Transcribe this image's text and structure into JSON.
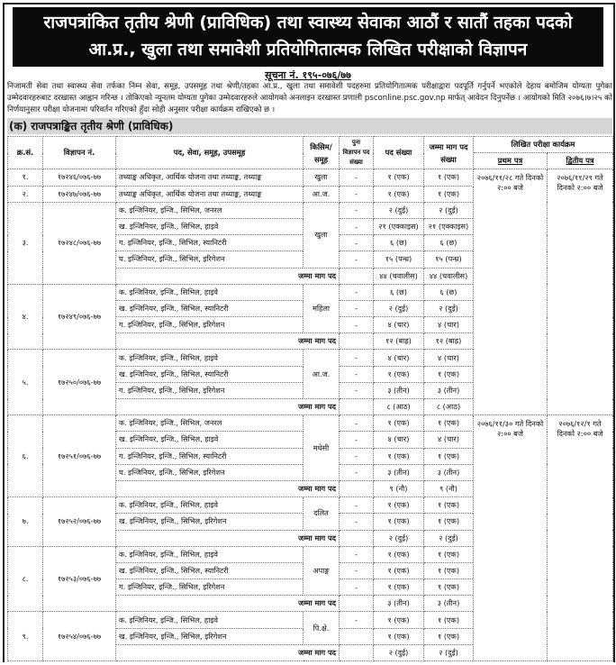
{
  "title": {
    "line1": "राजपत्रांकित तृतीय श्रेणी (प्राविधिक) तथा स्वास्थ्य सेवाका आठौं र सातौं तहका पदको",
    "line2": "आ.प्र., खुला तथा समावेशी प्रतियोगितात्मक लिखित परीक्षाको विज्ञापन"
  },
  "notice_no": "सूचना नं. १९५-०७६/७७",
  "paragraph": "निजामती सेवा तथा स्वास्थ्य सेवा तर्फका निम्न सेवा, समूह, उपसमूह तथा श्रेणी/तहका आ.प्र., खुला तथा समावेशी पदहरुमा प्रतियोगितात्मक परीक्षाद्वारा पदपूर्ति गर्नुपर्ने भएकोले देहाय बमोजिम योग्यता पुगेका उम्मेदवारहरुबाट दरखास्त आह्वान गरिन्छ । तोकिएको न्यूनतम योग्यता पुगेका उम्मेदवारहरुले आयोगको अनलाइन दरखास्त प्रणाली psconline.psc.gov.np मार्फत् आवेदन दिनुपर्नेछ । आयोगको मिति २०७६।७।२५ को निर्णयानुसार परीक्षा योजनामा परिवर्तन गरिएको हुँदा सोही अनुसार परीक्षा कार्यक्रम राखिएको छ ।",
  "section_heading": "(क) राजपत्राङ्कित तृतीय श्रेणी (प्राविधिक)",
  "table": {
    "headers": {
      "sn": "क्र.सं.",
      "ad_no": "विज्ञापन नं.",
      "post": "पद, सेवा, समूह, उपसमूह",
      "category": "किसिम/ समूह",
      "readvertised": "पुनः विज्ञापन पद संख्या",
      "posts_count": "पद संख्या",
      "total_demand": "जम्मा माग पद संख्या",
      "exam_schedule": "लिखित परीक्षा कार्यक्रम",
      "paper1": "प्रथम पत्र",
      "paper2": "द्वितीय पत्र"
    },
    "total_label": "जम्मा माग पद",
    "exam_blocks": [
      {
        "paper1": "२०७६/११/२८ गते दिनको २:०० बजे",
        "paper2": "२०७६/११/२९ गते दिनको २:०० बजे"
      },
      {
        "paper1": "२०७६/११/३० गते दिनको २:०० बजे",
        "paper2": "२०७६/१२/१ गते दिनको २:०० बजे"
      }
    ],
    "groups": [
      {
        "sn": "१.",
        "ad_no": "१७२४६/०७६-७७",
        "category": "खुला",
        "posts": [
          {
            "name": "तथ्याङ्क अधिकृत, आर्थिक योजना तथा तथ्याङ्क, तथ्याङ्क",
            "readv": "-",
            "count": "१ (एक)",
            "total": "१ (एक)"
          }
        ]
      },
      {
        "sn": "२.",
        "ad_no": "१७२४७/०७६-७७",
        "category": "आ.ज.",
        "posts": [
          {
            "name": "तथ्याङ्क अधिकृत, आर्थिक योजना तथा तथ्याङ्क, तथ्याङ्क",
            "readv": "-",
            "count": "१ (एक)",
            "total": "१ (एक)"
          }
        ]
      },
      {
        "sn": "३.",
        "ad_no": "१७२४८/०७६-७७",
        "category": "खुला",
        "posts": [
          {
            "name": "क. इन्जिनियर, इन्जि., सिभिल, जनरल",
            "readv": "-",
            "count": "२ (दुई)",
            "total": "२ (दुई)"
          },
          {
            "name": "ख. इन्जिनियर, इन्जि., सिभिल, हाइवे",
            "readv": "-",
            "count": "२१ (एक्काइस)",
            "total": "२१ (एक्काइस)"
          },
          {
            "name": "ग. इन्जिनियर, इन्जि., सिभिल, स्यानिटरी",
            "readv": "-",
            "count": "६ (छ)",
            "total": "६ (छ)"
          },
          {
            "name": "घ. इन्जिनियर, इन्जि., सिभिल, इरिगेशन",
            "readv": "-",
            "count": "१५ (पन्ध्र)",
            "total": "१५ (पन्ध्र)"
          }
        ],
        "sum": {
          "count": "४४ (चवालीस)",
          "total": "४४ (चवालीस)"
        }
      },
      {
        "sn": "४.",
        "ad_no": "१७२४९/०७६-७७",
        "category": "महिला",
        "posts": [
          {
            "name": "क. इन्जिनियर, इन्जि., सिभिल, हाइवे",
            "readv": "-",
            "count": "६ (छ)",
            "total": "६ (छ)"
          },
          {
            "name": "ख. इन्जिनियर, इन्जि., सिभिल, स्यानिटरी",
            "readv": "-",
            "count": "२ (दुई)",
            "total": "२ (दुई)"
          },
          {
            "name": "ग. इन्जिनियर, इन्जि., सिभिल, इरिगेशन",
            "readv": "-",
            "count": "४ (चार)",
            "total": "४ (चार)"
          }
        ],
        "sum": {
          "count": "१२ (बाह्र)",
          "total": "१२ (बाह्र)"
        }
      },
      {
        "sn": "५.",
        "ad_no": "१७२५०/०७६-७७",
        "category": "आ.ज.",
        "posts": [
          {
            "name": "क. इन्जिनियर, इन्जि., सिभिल, हाइवे",
            "readv": "-",
            "count": "४ (चार)",
            "total": "४ (चार)"
          },
          {
            "name": "ख. इन्जिनियर, इन्जि., सिभिल, स्यानिटरी",
            "readv": "-",
            "count": "१ (एक)",
            "total": "१ (एक)"
          },
          {
            "name": "ग. इन्जिनियर, इन्जि., सिभिल, इरिगेशन",
            "readv": "-",
            "count": "३ (तीन)",
            "total": "३ (तीन)"
          }
        ],
        "sum": {
          "count": "८ (आठ)",
          "total": "८ (आठ)"
        }
      },
      {
        "sn": "६.",
        "ad_no": "१७२५१/०७६-७७",
        "category": "मधेसी",
        "posts": [
          {
            "name": "क. इन्जिनियर, इन्जि., सिभिल, जनरल",
            "readv": "-",
            "count": "१ (एक)",
            "total": "१ (एक)"
          },
          {
            "name": "ख. इन्जिनियर, इन्जि., सिभिल, हाइवे",
            "readv": "-",
            "count": "४ (चार)",
            "total": "४ (चार)"
          },
          {
            "name": "ग. इन्जिनियर, इन्जि., सिभिल, स्यानिटरी",
            "readv": "-",
            "count": "१ (एक)",
            "total": "१ (एक)"
          },
          {
            "name": "घ. इन्जिनियर, इन्जि., सिभिल, इरिगेशन",
            "readv": "-",
            "count": "३ (तीन)",
            "total": "३ (तीन)"
          }
        ],
        "sum": {
          "count": "९ (नौ)",
          "total": "९ (नौ)"
        }
      },
      {
        "sn": "७.",
        "ad_no": "१७२५२/०७६-७७",
        "category": "दलित",
        "posts": [
          {
            "name": "क. इन्जिनियर, इन्जि., सिभिल, हाइवे",
            "readv": "-",
            "count": "१ (एक)",
            "total": "१ (एक)"
          },
          {
            "name": "ख. इन्जिनियर, इन्जि., सिभिल, इरिगेशन",
            "readv": "-",
            "count": "१ (एक)",
            "total": "१ (एक)"
          }
        ],
        "sum": {
          "count": "२ (दुई)",
          "total": "२ (दुई)"
        }
      },
      {
        "sn": "८.",
        "ad_no": "१७२५३/०७६-७७",
        "category": "अपाङ्ग",
        "posts": [
          {
            "name": "क. इन्जिनियर, इन्जि., सिभिल, हाइवे",
            "readv": "-",
            "count": "१ (एक)",
            "total": "१ (एक)"
          },
          {
            "name": "ख. इन्जिनियर, इन्जि., सिभिल, स्यानिटरी",
            "readv": "-",
            "count": "१ (एक)",
            "total": "१ (एक)"
          },
          {
            "name": "ग. इन्जिनियर, इन्जि., सिभिल, इरिगेशन",
            "readv": "-",
            "count": "१ (एक)",
            "total": "१ (एक)"
          }
        ],
        "sum": {
          "count": "३ (तीन)",
          "total": "३ (तीन)"
        }
      },
      {
        "sn": "९.",
        "ad_no": "१७२५४/०७६-७७",
        "category": "पि.क्षे.",
        "posts": [
          {
            "name": "क. इन्जिनियर, इन्जि., सिभिल, हाइवे",
            "readv": "-",
            "count": "१ (एक)",
            "total": "१ (एक)"
          },
          {
            "name": "ख. इन्जिनियर, इन्जि., सिभिल, इरिगेशन",
            "readv": "",
            "count": "१ (एक)",
            "total": "१ (एक)"
          }
        ],
        "sum": {
          "count": "२ (दुई)",
          "total": "२ (दुई)"
        }
      }
    ]
  }
}
